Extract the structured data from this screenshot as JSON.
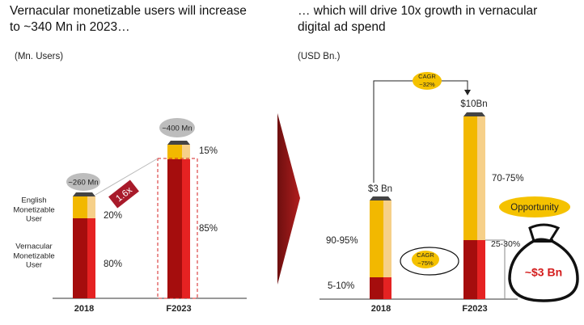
{
  "left": {
    "title": [
      "Vernacular monetizable users will increase",
      "to ~340 Mn in 2023…"
    ],
    "unit": "(Mn. Users)",
    "categories": [
      "2018",
      "F2023"
    ],
    "totals": [
      "~260 Mn",
      "~400 Mn"
    ],
    "growth": "1.6x",
    "segments": [
      {
        "name": [
          "English",
          "Monetizable",
          "User"
        ],
        "labels": [
          "20%",
          "15%"
        ]
      },
      {
        "name": [
          "Vernacular",
          "Monetizable",
          "User"
        ],
        "labels": [
          "80%",
          "85%"
        ]
      }
    ]
  },
  "right": {
    "title": [
      "… which will drive 10x growth in vernacular",
      "digital ad spend"
    ],
    "unit": "(USD Bn.)",
    "categories": [
      "2018",
      "F2023"
    ],
    "totals": [
      "$3 Bn",
      "$10Bn"
    ],
    "cagr_total": [
      "CAGR",
      "~32%"
    ],
    "cagr_vernacular": [
      "CAGR",
      "~75%"
    ],
    "shares_2018": [
      "90-95%",
      "5-10%"
    ],
    "shares_2023": [
      "70-75%",
      "25-30%"
    ],
    "opportunity": "Opportunity",
    "opportunity_value": "~$3 Bn"
  }
}
